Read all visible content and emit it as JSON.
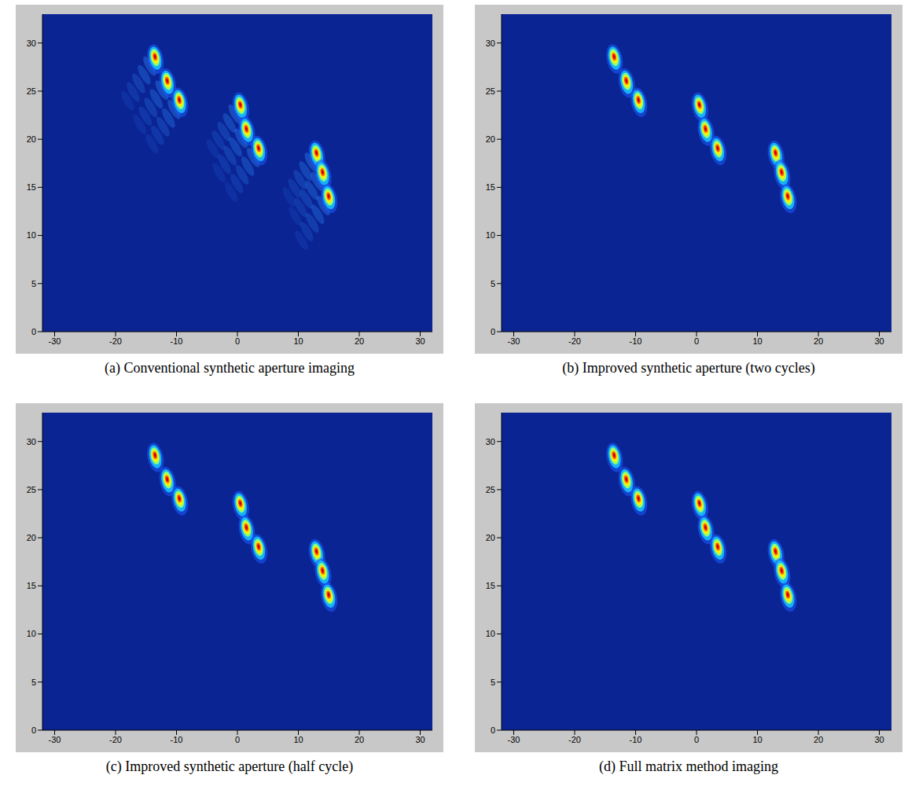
{
  "chart_data": [
    {
      "type": "scatter",
      "title": "(a) Conventional synthetic aperture imaging",
      "x": [
        -13.5,
        -11.5,
        -9.5,
        0.5,
        1.5,
        3.5,
        13,
        14,
        15
      ],
      "values": [
        28.5,
        26,
        24,
        23.5,
        21,
        19,
        18.5,
        16.5,
        14
      ],
      "marker": "smeared",
      "xlim": [
        -32,
        32
      ],
      "ylim": [
        0,
        33
      ],
      "xticks": [
        -30,
        -20,
        -10,
        0,
        10,
        20,
        30
      ],
      "yticks": [
        0,
        5,
        10,
        15,
        20,
        25,
        30
      ]
    },
    {
      "type": "scatter",
      "title": "(b) Improved synthetic aperture (two cycles)",
      "x": [
        -13.5,
        -11.5,
        -9.5,
        0.5,
        1.5,
        3.5,
        13,
        14,
        15
      ],
      "values": [
        28.5,
        26,
        24,
        23.5,
        21,
        19,
        18.5,
        16.5,
        14
      ],
      "marker": "spot",
      "xlim": [
        -32,
        32
      ],
      "ylim": [
        0,
        33
      ],
      "xticks": [
        -30,
        -20,
        -10,
        0,
        10,
        20,
        30
      ],
      "yticks": [
        0,
        5,
        10,
        15,
        20,
        25,
        30
      ]
    },
    {
      "type": "scatter",
      "title": "(c) Improved synthetic aperture (half cycle)",
      "x": [
        -13.5,
        -11.5,
        -9.5,
        0.5,
        1.5,
        3.5,
        13,
        14,
        15
      ],
      "values": [
        28.5,
        26,
        24,
        23.5,
        21,
        19,
        18.5,
        16.5,
        14
      ],
      "marker": "spot",
      "xlim": [
        -32,
        32
      ],
      "ylim": [
        0,
        33
      ],
      "xticks": [
        -30,
        -20,
        -10,
        0,
        10,
        20,
        30
      ],
      "yticks": [
        0,
        5,
        10,
        15,
        20,
        25,
        30
      ]
    },
    {
      "type": "scatter",
      "title": "(d) Full matrix method imaging",
      "x": [
        -13.5,
        -11.5,
        -9.5,
        0.5,
        1.5,
        3.5,
        13,
        14,
        15
      ],
      "values": [
        28.5,
        26,
        24,
        23.5,
        21,
        19,
        18.5,
        16.5,
        14
      ],
      "marker": "spot",
      "xlim": [
        -32,
        32
      ],
      "ylim": [
        0,
        33
      ],
      "xticks": [
        -30,
        -20,
        -10,
        0,
        10,
        20,
        30
      ],
      "yticks": [
        0,
        5,
        10,
        15,
        20,
        25,
        30
      ]
    }
  ]
}
